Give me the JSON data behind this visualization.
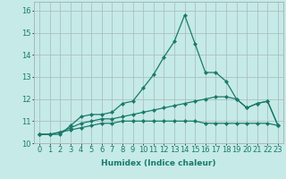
{
  "xlabel": "Humidex (Indice chaleur)",
  "ylabel": "",
  "x": [
    0,
    1,
    2,
    3,
    4,
    5,
    6,
    7,
    8,
    9,
    10,
    11,
    12,
    13,
    14,
    15,
    16,
    17,
    18,
    19,
    20,
    21,
    22,
    23
  ],
  "line1": [
    10.4,
    10.4,
    10.4,
    10.8,
    11.2,
    11.3,
    11.3,
    11.4,
    11.8,
    11.9,
    12.5,
    13.1,
    13.9,
    14.6,
    15.8,
    14.5,
    13.2,
    13.2,
    12.8,
    12.0,
    11.6,
    11.8,
    11.9,
    10.8
  ],
  "line2": [
    10.4,
    10.4,
    10.5,
    10.7,
    10.9,
    11.0,
    11.1,
    11.1,
    11.2,
    11.3,
    11.4,
    11.5,
    11.6,
    11.7,
    11.8,
    11.9,
    12.0,
    12.1,
    12.1,
    12.0,
    11.6,
    11.8,
    11.9,
    10.8
  ],
  "line3": [
    10.4,
    10.4,
    10.5,
    10.6,
    10.7,
    10.8,
    10.9,
    10.9,
    11.0,
    11.0,
    11.0,
    11.0,
    11.0,
    11.0,
    11.0,
    11.0,
    10.9,
    10.9,
    10.9,
    10.9,
    10.9,
    10.9,
    10.9,
    10.8
  ],
  "line_color": "#1a7a6a",
  "bg_color": "#c5eae7",
  "grid_color": "#a8b8b8",
  "ylim": [
    10.0,
    16.4
  ],
  "yticks": [
    10,
    11,
    12,
    13,
    14,
    15,
    16
  ],
  "marker": "D",
  "markersize": 2.0,
  "linewidth": 0.9,
  "label_fontsize": 6.5,
  "tick_fontsize": 6.0
}
